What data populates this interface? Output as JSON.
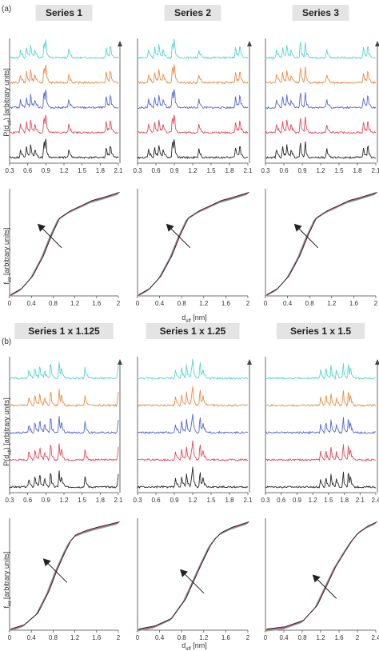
{
  "panel_labels": {
    "a": "(a)",
    "b": "(b)"
  },
  "colors": {
    "cyan": "#58d6cf",
    "orange": "#ef8d4a",
    "blue": "#5468d8",
    "red": "#e64a5c",
    "black": "#2a2a2a"
  },
  "arrow_note": "up arrow at right of spectrum rows",
  "chart_data": [
    {
      "id": "a-s1-spec",
      "type": "line",
      "title": "Series 1",
      "xlim": [
        0.3,
        2.1
      ],
      "xticks": [
        "0.3",
        "0.6",
        "0.9",
        "1.2",
        "1.5",
        "1.8",
        "2.1"
      ],
      "ylabel": "P(d_eff) [arbitrary units]",
      "series": [
        {
          "color": "cyan"
        },
        {
          "color": "orange"
        },
        {
          "color": "blue"
        },
        {
          "color": "red"
        },
        {
          "color": "black"
        }
      ],
      "peaks": [
        0.48,
        0.58,
        0.65,
        0.72,
        0.87,
        0.9,
        1.28,
        1.9,
        1.97
      ]
    },
    {
      "id": "a-s2-spec",
      "type": "line",
      "title": "Series 2",
      "xlim": [
        0.3,
        2.1
      ],
      "xticks": [
        "0.3",
        "0.6",
        "0.9",
        "1.2",
        "1.5",
        "1.8",
        "2.1"
      ],
      "series": [
        {
          "color": "cyan"
        },
        {
          "color": "orange"
        },
        {
          "color": "blue"
        },
        {
          "color": "red"
        },
        {
          "color": "black"
        }
      ],
      "peaks": [
        0.48,
        0.58,
        0.65,
        0.72,
        0.87,
        0.9,
        1.3,
        1.9,
        1.97
      ]
    },
    {
      "id": "a-s3-spec",
      "type": "line",
      "title": "Series 3",
      "xlim": [
        0.3,
        2.1
      ],
      "xticks": [
        "0.3",
        "0.6",
        "0.9",
        "1.2",
        "1.5",
        "1.8",
        "2.1"
      ],
      "series": [
        {
          "color": "cyan"
        },
        {
          "color": "orange"
        },
        {
          "color": "blue"
        },
        {
          "color": "red"
        },
        {
          "color": "black"
        }
      ],
      "peaks": [
        0.48,
        0.58,
        0.65,
        0.72,
        0.87,
        0.95,
        1.3,
        1.9,
        1.97
      ]
    },
    {
      "id": "a-s1-int",
      "type": "line",
      "xlim": [
        0,
        2
      ],
      "xticks": [
        "0",
        "0.4",
        "0.8",
        "1.2",
        "1.6",
        "2"
      ],
      "ylabel": "f_int [arbitrary units]",
      "x": [
        0,
        0.2,
        0.4,
        0.6,
        0.75,
        0.9,
        1.1,
        1.3,
        1.5,
        1.7,
        2
      ],
      "y": [
        0,
        0.06,
        0.18,
        0.38,
        0.58,
        0.75,
        0.82,
        0.87,
        0.92,
        0.95,
        1
      ]
    },
    {
      "id": "a-s2-int",
      "type": "line",
      "xlim": [
        0,
        2
      ],
      "xticks": [
        "0",
        "0.4",
        "0.8",
        "1.2",
        "1.6",
        "2"
      ],
      "xlabel": "d_eff [nm]",
      "x": [
        0,
        0.2,
        0.4,
        0.6,
        0.75,
        0.9,
        1.1,
        1.3,
        1.5,
        1.7,
        2
      ],
      "y": [
        0,
        0.06,
        0.18,
        0.38,
        0.58,
        0.75,
        0.82,
        0.87,
        0.92,
        0.95,
        1
      ]
    },
    {
      "id": "a-s3-int",
      "type": "line",
      "xlim": [
        0,
        2
      ],
      "xticks": [
        "0",
        "0.4",
        "0.8",
        "1.2",
        "1.6",
        "2"
      ],
      "x": [
        0,
        0.2,
        0.4,
        0.6,
        0.75,
        0.9,
        1.1,
        1.3,
        1.5,
        1.7,
        2
      ],
      "y": [
        0,
        0.06,
        0.18,
        0.38,
        0.58,
        0.75,
        0.82,
        0.87,
        0.92,
        0.95,
        1
      ]
    },
    {
      "id": "b-s1-spec",
      "type": "line",
      "title": "Series 1 x 1.125",
      "xlim": [
        0.3,
        2.1
      ],
      "xticks": [
        "0.3",
        "0.6",
        "0.9",
        "1.2",
        "1.5",
        "1.8",
        "2.1"
      ],
      "ylabel": "P(d_eff) [arbitrary units]",
      "series": [
        {
          "color": "cyan"
        },
        {
          "color": "orange"
        },
        {
          "color": "blue"
        },
        {
          "color": "red"
        },
        {
          "color": "black"
        }
      ],
      "peaks": [
        0.62,
        0.72,
        0.8,
        0.88,
        0.98,
        1.12,
        1.16,
        1.55,
        2.1
      ]
    },
    {
      "id": "b-s2-spec",
      "type": "line",
      "title": "Series 1 x 1.25",
      "xlim": [
        0.3,
        2.1
      ],
      "xticks": [
        "0.3",
        "0.6",
        "0.9",
        "1.2",
        "1.5",
        "1.8",
        "2.1"
      ],
      "series": [
        {
          "color": "cyan"
        },
        {
          "color": "orange"
        },
        {
          "color": "blue"
        },
        {
          "color": "red"
        },
        {
          "color": "black"
        }
      ],
      "peaks": [
        0.92,
        1.02,
        1.1,
        1.18,
        1.2,
        1.32,
        1.37
      ]
    },
    {
      "id": "b-s3-spec",
      "type": "line",
      "title": "Series 1 x 1.5",
      "xlim": [
        0.3,
        2.4
      ],
      "xticks": [
        "0.3",
        "0.6",
        "0.9",
        "1.2",
        "1.5",
        "1.8",
        "2.1",
        "2.4"
      ],
      "series": [
        {
          "color": "cyan"
        },
        {
          "color": "orange"
        },
        {
          "color": "blue"
        },
        {
          "color": "red"
        },
        {
          "color": "black"
        }
      ],
      "peaks": [
        1.35,
        1.45,
        1.55,
        1.65,
        1.78,
        1.88,
        1.92
      ]
    },
    {
      "id": "b-s1-int",
      "type": "line",
      "xlim": [
        0,
        2
      ],
      "xticks": [
        "0",
        "0.4",
        "0.8",
        "1.2",
        "1.6",
        "2"
      ],
      "ylabel": "f_int [arbitrary units]",
      "x": [
        0,
        0.25,
        0.5,
        0.7,
        0.85,
        1.0,
        1.1,
        1.2,
        1.4,
        1.6,
        2
      ],
      "y": [
        0,
        0.04,
        0.15,
        0.35,
        0.55,
        0.72,
        0.82,
        0.88,
        0.92,
        0.95,
        1
      ]
    },
    {
      "id": "b-s2-int",
      "type": "line",
      "xlim": [
        0,
        2
      ],
      "xticks": [
        "0",
        "0.4",
        "0.8",
        "1.2",
        "1.6",
        "2"
      ],
      "xlabel": "d_eff [nm]",
      "x": [
        0,
        0.3,
        0.6,
        0.85,
        1.0,
        1.15,
        1.3,
        1.4,
        1.5,
        1.7,
        2
      ],
      "y": [
        0,
        0.03,
        0.1,
        0.28,
        0.45,
        0.62,
        0.78,
        0.85,
        0.9,
        0.95,
        1
      ]
    },
    {
      "id": "b-s3-int",
      "type": "line",
      "xlim": [
        0,
        2.4
      ],
      "xticks": [
        "0",
        "0.4",
        "0.8",
        "1.2",
        "1.6",
        "2",
        "2.4"
      ],
      "x": [
        0,
        0.4,
        0.8,
        1.1,
        1.3,
        1.5,
        1.7,
        1.85,
        2.0,
        2.2,
        2.4
      ],
      "y": [
        0,
        0.02,
        0.08,
        0.22,
        0.4,
        0.58,
        0.72,
        0.82,
        0.9,
        0.96,
        1
      ]
    }
  ]
}
